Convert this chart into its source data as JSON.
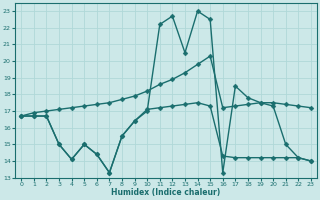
{
  "xlabel": "Humidex (Indice chaleur)",
  "bg_color": "#cce8e8",
  "grid_color": "#b0d8d8",
  "line_color": "#1a6e6e",
  "markersize": 2.5,
  "linewidth": 1.0,
  "xlim": [
    -0.5,
    23.5
  ],
  "ylim": [
    13,
    23.5
  ],
  "yticks": [
    13,
    14,
    15,
    16,
    17,
    18,
    19,
    20,
    21,
    22,
    23
  ],
  "xticks": [
    0,
    1,
    2,
    3,
    4,
    5,
    6,
    7,
    8,
    9,
    10,
    11,
    12,
    13,
    14,
    15,
    16,
    17,
    18,
    19,
    20,
    21,
    22,
    23
  ],
  "series": [
    {
      "x": [
        0,
        1,
        2,
        3,
        4,
        5,
        6,
        7,
        8,
        9,
        10,
        11,
        12,
        13,
        14,
        15,
        16,
        17,
        18,
        19,
        20,
        21,
        22,
        23
      ],
      "y": [
        16.7,
        16.9,
        17.0,
        17.1,
        17.2,
        17.3,
        17.4,
        17.5,
        17.7,
        17.9,
        18.2,
        18.6,
        18.9,
        19.3,
        19.8,
        20.3,
        17.2,
        17.3,
        17.4,
        17.5,
        17.5,
        17.4,
        17.3,
        17.2
      ]
    },
    {
      "x": [
        0,
        1,
        2,
        3,
        4,
        5,
        6,
        7,
        8,
        9,
        10,
        11,
        12,
        13,
        14,
        15,
        16,
        17,
        18,
        19,
        20,
        21,
        22,
        23
      ],
      "y": [
        16.7,
        16.7,
        16.7,
        15.0,
        14.1,
        15.0,
        14.4,
        13.3,
        15.5,
        16.4,
        17.0,
        22.2,
        22.7,
        20.5,
        23.0,
        22.5,
        13.3,
        18.5,
        17.8,
        17.5,
        17.3,
        15.0,
        14.2,
        14.0
      ]
    },
    {
      "x": [
        0,
        1,
        2,
        3,
        4,
        5,
        6,
        7,
        8,
        9,
        10,
        11,
        12,
        13,
        14,
        15,
        16,
        17,
        18,
        19,
        20,
        21,
        22,
        23
      ],
      "y": [
        16.7,
        16.7,
        16.7,
        15.0,
        14.1,
        15.0,
        14.4,
        13.3,
        15.5,
        16.4,
        17.1,
        17.2,
        17.3,
        17.4,
        17.5,
        17.3,
        14.3,
        14.2,
        14.2,
        14.2,
        14.2,
        14.2,
        14.2,
        14.0
      ]
    }
  ]
}
